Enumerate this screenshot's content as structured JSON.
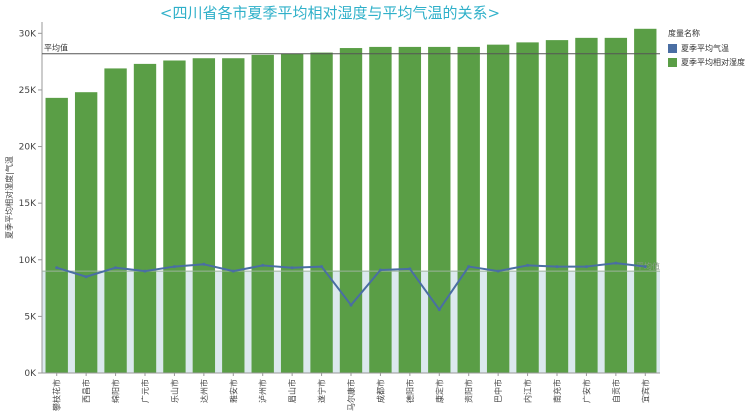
{
  "chart_data": {
    "type": "bar",
    "title": "<四川省各市夏季平均相对湿度与平均气温的关系>",
    "ylabel": "夏季平均相对湿度|气温",
    "xlabel": "",
    "ylim": [
      0,
      31000
    ],
    "yticks": [
      0,
      5000,
      10000,
      15000,
      20000,
      25000,
      30000
    ],
    "ytick_labels": [
      "0K",
      "5K",
      "10K",
      "15K",
      "20K",
      "25K",
      "30K"
    ],
    "categories": [
      "攀枝花市",
      "西昌市",
      "绵阳市",
      "广元市",
      "乐山市",
      "达州市",
      "雅安市",
      "泸州市",
      "眉山市",
      "遂宁市",
      "马尔康市",
      "成都市",
      "德阳市",
      "康定市",
      "资阳市",
      "巴中市",
      "内江市",
      "南充市",
      "广安市",
      "自贡市",
      "宜宾市"
    ],
    "series": [
      {
        "name": "夏季平均相对湿度",
        "color": "#5a9e46",
        "values": [
          24300,
          24800,
          26900,
          27300,
          27600,
          27800,
          27800,
          28100,
          28200,
          28300,
          28700,
          28800,
          28800,
          28800,
          28800,
          29000,
          29200,
          29400,
          29600,
          29600,
          30400
        ]
      },
      {
        "name": "夏季平均气温",
        "color": "#4a6ea3",
        "values": [
          9300,
          8500,
          9300,
          9000,
          9400,
          9600,
          9000,
          9500,
          9300,
          9400,
          6000,
          9100,
          9200,
          5600,
          9400,
          9000,
          9500,
          9400,
          9400,
          9700,
          9400
        ]
      }
    ],
    "reference_lines": [
      {
        "label": "平均值",
        "value": 28200,
        "series": "夏季平均相对湿度",
        "label_position": "top-left"
      },
      {
        "label": "平均值",
        "value": 9000,
        "series": "夏季平均气温",
        "label_position": "right"
      }
    ],
    "legend": {
      "title": "度量名称",
      "position": "top-right",
      "items": [
        {
          "label": "夏季平均气温",
          "color": "#4a6ea3"
        },
        {
          "label": "夏季平均相对湿度",
          "color": "#5a9e46"
        }
      ]
    },
    "grid": false
  }
}
